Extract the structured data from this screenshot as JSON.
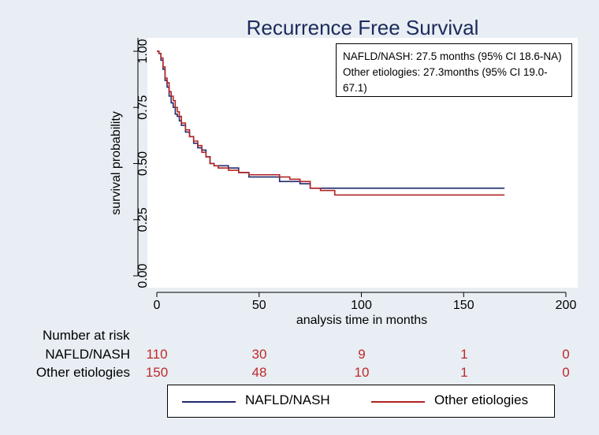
{
  "chart_data": {
    "type": "line",
    "title": "Recurrence Free Survival",
    "xlabel": "analysis time in months",
    "ylabel": "survival probability",
    "xlim": [
      0,
      200
    ],
    "ylim": [
      0,
      1
    ],
    "x_ticks": [
      "0",
      "50",
      "100",
      "150",
      "200"
    ],
    "y_ticks": [
      "0.00",
      "0.25",
      "0.50",
      "0.75",
      "1.00"
    ],
    "series": [
      {
        "name": "NAFLD/NASH",
        "color": "#1f2a6e",
        "x": [
          0,
          1,
          2,
          3,
          4,
          5,
          6,
          7,
          8,
          9,
          10,
          11,
          12,
          14,
          16,
          18,
          20,
          22,
          24,
          26,
          28,
          30,
          35,
          40,
          45,
          50,
          55,
          60,
          65,
          70,
          75,
          80,
          90,
          100,
          170
        ],
        "y": [
          1.0,
          0.99,
          0.96,
          0.92,
          0.87,
          0.84,
          0.8,
          0.77,
          0.75,
          0.72,
          0.71,
          0.69,
          0.67,
          0.64,
          0.62,
          0.59,
          0.57,
          0.56,
          0.53,
          0.5,
          0.49,
          0.49,
          0.48,
          0.46,
          0.44,
          0.44,
          0.44,
          0.42,
          0.42,
          0.41,
          0.39,
          0.39,
          0.39,
          0.39,
          0.39
        ]
      },
      {
        "name": "Other etiologies",
        "color": "#b22424",
        "x": [
          0,
          1,
          2,
          3,
          4,
          5,
          6,
          7,
          8,
          9,
          10,
          11,
          12,
          14,
          16,
          18,
          20,
          22,
          24,
          26,
          28,
          30,
          35,
          40,
          45,
          50,
          55,
          60,
          65,
          70,
          75,
          80,
          87,
          100,
          170
        ],
        "y": [
          1.0,
          0.99,
          0.97,
          0.93,
          0.88,
          0.86,
          0.82,
          0.8,
          0.78,
          0.75,
          0.73,
          0.71,
          0.68,
          0.65,
          0.62,
          0.6,
          0.58,
          0.55,
          0.53,
          0.5,
          0.49,
          0.48,
          0.47,
          0.46,
          0.45,
          0.45,
          0.45,
          0.44,
          0.43,
          0.42,
          0.39,
          0.38,
          0.36,
          0.36,
          0.36
        ]
      }
    ],
    "annotation": {
      "line1": "NAFLD/NASH: 27.5 months (95% CI 18.6-NA)",
      "line2": "Other etiologies: 27.3months (95% CI 19.0-67.1)"
    },
    "risk_table": {
      "header": "Number at risk",
      "rows": [
        {
          "label": "NAFLD/NASH",
          "values": [
            "110",
            "30",
            "9",
            "1",
            "0"
          ]
        },
        {
          "label": "Other etiologies",
          "values": [
            "150",
            "48",
            "10",
            "1",
            "0"
          ]
        }
      ]
    },
    "legend": {
      "position": "bottom",
      "entries": [
        "NAFLD/NASH",
        "Other etiologies"
      ]
    }
  }
}
